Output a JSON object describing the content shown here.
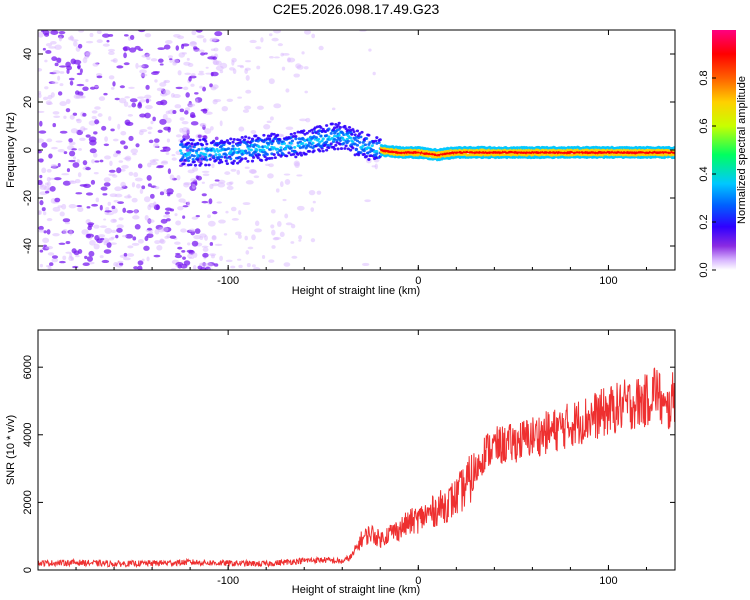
{
  "figure_title": "C2E5.2026.098.17.49.G23",
  "chart_data": [
    {
      "type": "heatmap",
      "title": "C2E5.2026.098.17.49.G23",
      "xlabel": "Height of straight line (km)",
      "ylabel": "Frequency (Hz)",
      "xlim": [
        -200,
        135
      ],
      "ylim": [
        -50,
        50
      ],
      "xticks": [
        -100,
        0,
        100
      ],
      "xtick_labels": [
        "-100",
        "0",
        "100"
      ],
      "yticks": [
        -40,
        -20,
        0,
        20,
        40
      ],
      "ytick_labels": [
        "-40",
        "-20",
        "0",
        "20",
        "40"
      ],
      "ridge": {
        "description_points_x": [
          -125,
          -110,
          -95,
          -80,
          -65,
          -50,
          -40,
          -30,
          -20,
          -10,
          0,
          10,
          20,
          40,
          60,
          80,
          100,
          120,
          135
        ],
        "frequency": [
          -1,
          -1,
          0,
          1,
          2,
          5,
          6,
          2,
          0,
          -1,
          -1,
          -2,
          -1,
          -1,
          -1,
          -1,
          -1,
          -1,
          -1
        ]
      },
      "colorbar": {
        "label": "Normalized spectral amplitude",
        "range": [
          0,
          1
        ],
        "ticks": [
          0.0,
          0.2,
          0.4,
          0.6,
          0.8
        ],
        "tick_labels": [
          "0.0",
          "0.2",
          "0.4",
          "0.6",
          "0.8"
        ]
      }
    },
    {
      "type": "line",
      "xlabel": "Height of straight line (km)",
      "ylabel": "SNR (10 * v/v)",
      "xlim": [
        -200,
        135
      ],
      "ylim": [
        0,
        7100
      ],
      "xticks": [
        -100,
        0,
        100
      ],
      "xtick_labels": [
        "-100",
        "0",
        "100"
      ],
      "yticks": [
        0,
        2000,
        4000,
        6000
      ],
      "ytick_labels": [
        "0",
        "2000",
        "4000",
        "6000"
      ],
      "line_color": "#ee3030",
      "series": [
        {
          "name": "SNR",
          "x": [
            -200,
            -180,
            -160,
            -140,
            -120,
            -100,
            -80,
            -60,
            -50,
            -40,
            -35,
            -30,
            -25,
            -20,
            -15,
            -10,
            -5,
            0,
            5,
            10,
            15,
            20,
            25,
            30,
            35,
            40,
            50,
            60,
            70,
            80,
            90,
            100,
            110,
            120,
            125,
            130,
            135
          ],
          "y": [
            200,
            220,
            180,
            200,
            230,
            200,
            180,
            280,
            300,
            250,
            400,
            900,
            1100,
            900,
            1100,
            1200,
            1400,
            1500,
            1650,
            1800,
            1950,
            2150,
            2500,
            2900,
            3500,
            3650,
            3750,
            3950,
            4100,
            4300,
            4500,
            4700,
            4900,
            5000,
            5400,
            4600,
            5200
          ]
        }
      ]
    }
  ],
  "colors": {
    "scatter_purple": "#7a1cf0",
    "colormap": [
      "#ffffff",
      "#d9b8ff",
      "#8a2be2",
      "#2f00ff",
      "#0060ff",
      "#00c8ff",
      "#00ff60",
      "#c8ff00",
      "#ffd000",
      "#ff6000",
      "#ff0000",
      "#ff0080"
    ]
  }
}
